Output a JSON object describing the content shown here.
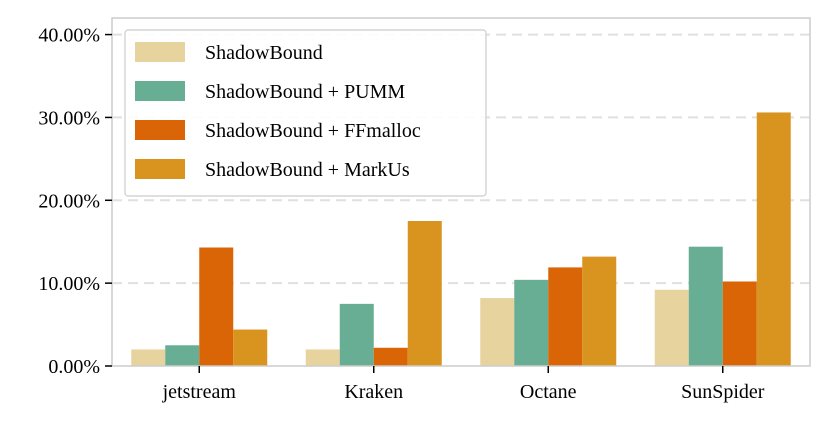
{
  "chart_data": {
    "type": "bar",
    "categories": [
      "jetstream",
      "Kraken",
      "Octane",
      "SunSpider"
    ],
    "series": [
      {
        "name": "ShadowBound",
        "color": "#e7d39e",
        "values": [
          2.0,
          2.0,
          8.2,
          9.2
        ]
      },
      {
        "name": "ShadowBound + PUMM",
        "color": "#67ae95",
        "values": [
          2.5,
          7.5,
          10.4,
          14.4
        ]
      },
      {
        "name": "ShadowBound + FFmalloc",
        "color": "#d96506",
        "values": [
          14.3,
          2.2,
          11.9,
          10.2
        ]
      },
      {
        "name": "ShadowBound + MarkUs",
        "color": "#d9931f",
        "values": [
          4.4,
          17.5,
          13.2,
          30.6
        ]
      }
    ],
    "ylim": [
      0,
      42
    ],
    "yticks": [
      0,
      10,
      20,
      30,
      40
    ],
    "ytick_labels": [
      "0.00%",
      "10.00%",
      "20.00%",
      "30.00%",
      "40.00%"
    ],
    "grid": "horizontal-dashed",
    "legend_position": "top-left",
    "title": "",
    "xlabel": "",
    "ylabel": ""
  }
}
